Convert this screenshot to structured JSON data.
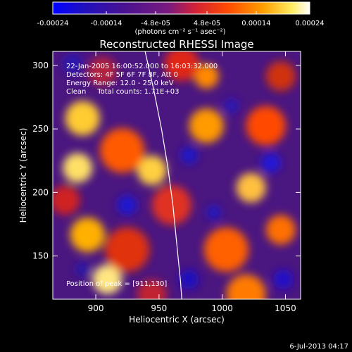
{
  "colorbar": {
    "tick_labels": [
      "-0.00024",
      "-0.00014",
      "-4.8e-05",
      "4.8e-05",
      "0.00014",
      "0.00024"
    ],
    "tick_values": [
      -0.00024,
      -0.00014,
      -4.8e-05,
      4.8e-05,
      0.00014,
      0.00024
    ],
    "range": [
      -0.00024,
      0.00024
    ],
    "units_label": "(photons cm⁻² s⁻¹ asec⁻²)",
    "colors": [
      "#0000ff",
      "#3a0a8a",
      "#6a1fa0",
      "#b0305a",
      "#ff3a00",
      "#ff8c00",
      "#ffdc00",
      "#ffffc0",
      "#ffffff"
    ]
  },
  "chart_data": {
    "type": "heatmap",
    "title": "Reconstructed RHESSI Image",
    "xlabel": "Heliocentric X (arcsec)",
    "ylabel": "Heliocentric Y (arcsec)",
    "xlim": [
      866,
      1062
    ],
    "ylim": [
      116,
      311
    ],
    "x_ticks": [
      900,
      950,
      1000,
      1050
    ],
    "y_ticks": [
      150,
      200,
      250,
      300
    ],
    "x_tick_labels": [
      "900",
      "950",
      "1000",
      "1050"
    ],
    "y_tick_labels": [
      "150",
      "200",
      "250",
      "300"
    ],
    "annotations": [
      "22-Jan-2005 16:00:52.000 to 16:03:32.000",
      "Detectors: 4F 5F 6F 7F 8F, Att 0",
      "Energy Range: 12.0 - 25.0 keV",
      "Clean     Total counts: 1.71E+03"
    ],
    "peak_label": "Position of peak = [911,130]",
    "limb_curve": [
      [
        939,
        311
      ],
      [
        946,
        280
      ],
      [
        952,
        250
      ],
      [
        957,
        220
      ],
      [
        961,
        190
      ],
      [
        964,
        160
      ],
      [
        967,
        130
      ],
      [
        968,
        116
      ]
    ]
  },
  "footer": {
    "timestamp": "6-Jul-2013 04:17"
  }
}
